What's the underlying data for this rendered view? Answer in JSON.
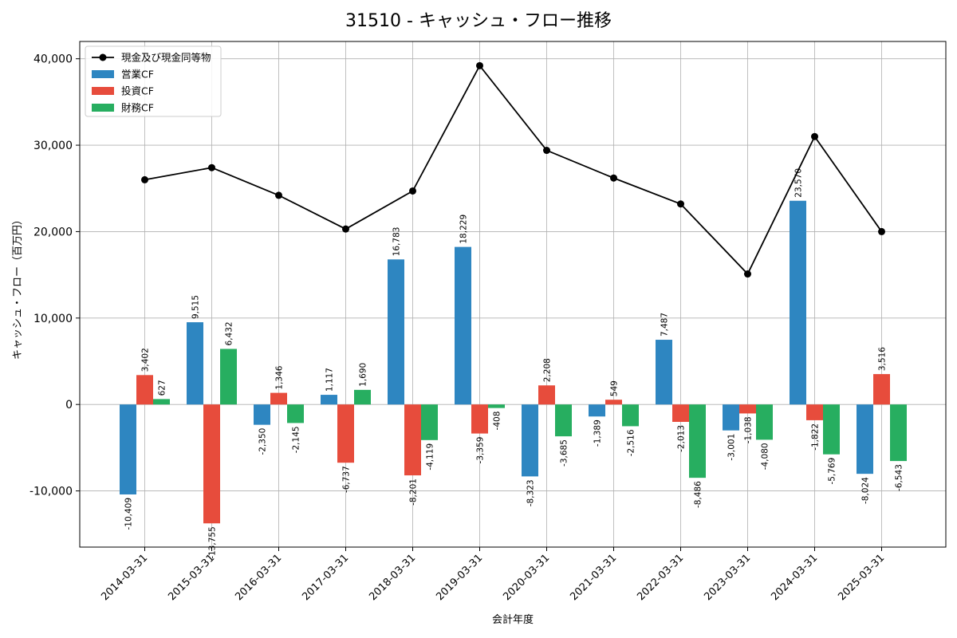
{
  "chart_data": {
    "type": "bar",
    "title": "31510 - キャッシュ・フロー推移",
    "xlabel": "会計年度",
    "ylabel": "キャッシュ・フロー（百万円）",
    "ylim": [
      -16500,
      42000
    ],
    "yticks": [
      -10000,
      0,
      10000,
      20000,
      30000,
      40000
    ],
    "ytick_labels": [
      "-10,000",
      "0",
      "10,000",
      "20,000",
      "30,000",
      "40,000"
    ],
    "grid": true,
    "legend_position": "top-left",
    "categories": [
      "2014-03-31",
      "2015-03-31",
      "2016-03-31",
      "2017-03-31",
      "2018-03-31",
      "2019-03-31",
      "2020-03-31",
      "2021-03-31",
      "2022-03-31",
      "2023-03-31",
      "2024-03-31",
      "2025-03-31"
    ],
    "line_series": {
      "name": "現金及び現金同等物",
      "color": "#000000",
      "values": [
        26000,
        27400,
        24200,
        20300,
        24700,
        39200,
        29400,
        26200,
        23200,
        15100,
        31000,
        20000
      ]
    },
    "series": [
      {
        "name": "営業CF",
        "color": "#2e86c1",
        "values": [
          -10409,
          9515,
          -2350,
          1117,
          16783,
          18229,
          -8323,
          -1389,
          7487,
          -3001,
          23570,
          -8024
        ],
        "labels": [
          "-10,409",
          "9,515",
          "-2,350",
          "1,117",
          "16,783",
          "18,229",
          "-8,323",
          "-1,389",
          "7,487",
          "-3,001",
          "23,570",
          "-8,024"
        ]
      },
      {
        "name": "投資CF",
        "color": "#e74c3c",
        "values": [
          3402,
          -13755,
          1346,
          -6737,
          -8201,
          -3359,
          2208,
          549,
          -2013,
          -1038,
          -1822,
          3516
        ],
        "labels": [
          "3,402",
          "-13,755",
          "1,346",
          "-6,737",
          "-8,201",
          "-3,359",
          "2,208",
          "549",
          "-2,013",
          "-1,038",
          "-1,822",
          "3,516"
        ]
      },
      {
        "name": "財務CF",
        "color": "#27ae60",
        "values": [
          627,
          6432,
          -2145,
          1690,
          -4119,
          -408,
          -3685,
          -2516,
          -8486,
          -4080,
          -5769,
          -6543
        ],
        "labels": [
          "627",
          "6,432",
          "-2,145",
          "1,690",
          "-4,119",
          "-408",
          "-3,685",
          "-2,516",
          "-8,486",
          "-4,080",
          "-5,769",
          "-6,543"
        ]
      }
    ]
  }
}
